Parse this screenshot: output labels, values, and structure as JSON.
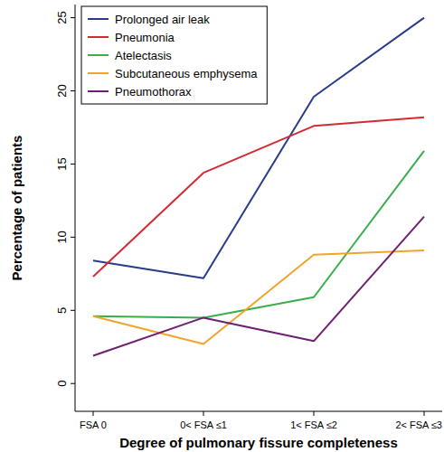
{
  "chart_data": {
    "type": "line",
    "x_label": "Degree of pulmonary fissure completeness",
    "y_label": "Percentage of patients",
    "categories": [
      "FSA 0",
      "0< FSA ≤1",
      "1< FSA ≤2",
      "2< FSA ≤3"
    ],
    "series": [
      {
        "name": "Prolonged air leak",
        "color": "#283c8a",
        "values": [
          8.4,
          7.2,
          19.6,
          25.0
        ]
      },
      {
        "name": "Pneumonia",
        "color": "#d42a34",
        "values": [
          7.3,
          14.4,
          17.6,
          18.2
        ]
      },
      {
        "name": "Atelectasis",
        "color": "#3aae4a",
        "values": [
          4.6,
          4.5,
          5.9,
          15.9
        ]
      },
      {
        "name": "Subcutaneous emphysema",
        "color": "#f0a52a",
        "values": [
          4.6,
          2.7,
          8.8,
          9.1
        ]
      },
      {
        "name": "Pneumothorax",
        "color": "#6e2070",
        "values": [
          1.9,
          4.5,
          2.9,
          11.4
        ]
      }
    ],
    "ylim": [
      -1.9,
      25.9
    ],
    "yticks": [
      0,
      5,
      10,
      15,
      20,
      25
    ],
    "grid": false,
    "legend": "top-left"
  }
}
